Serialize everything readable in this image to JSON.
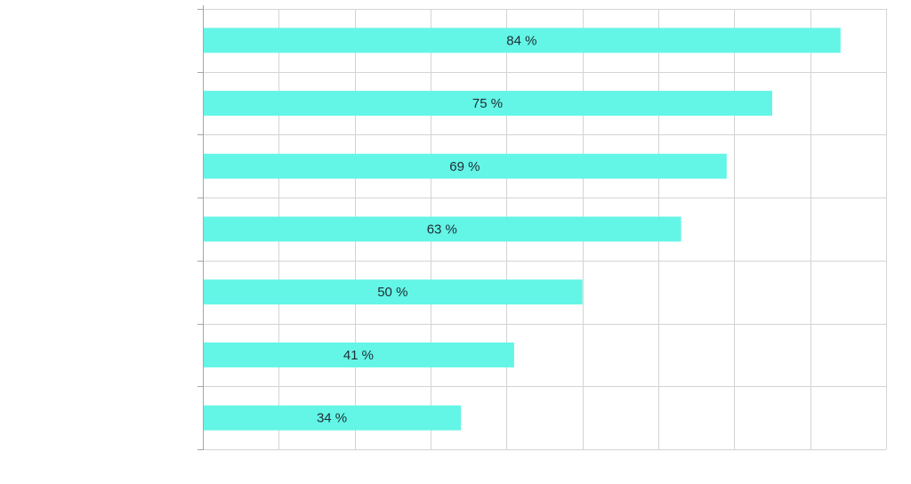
{
  "chart_data": {
    "type": "bar",
    "orientation": "horizontal",
    "values": [
      84,
      75,
      69,
      63,
      50,
      41,
      34
    ],
    "data_labels": [
      "84 %",
      "75 %",
      "69 %",
      "63 %",
      "50 %",
      "41 %",
      "34 %"
    ],
    "xlim": [
      0,
      90
    ],
    "x_gridline_step": 10,
    "grid": true,
    "legend": "none",
    "axis_labels_visible": false
  },
  "colors": {
    "bar": "#63f5e6",
    "grid": "#d4d4d4",
    "axis": "#a6a6a6",
    "label": "#1f2d33"
  }
}
